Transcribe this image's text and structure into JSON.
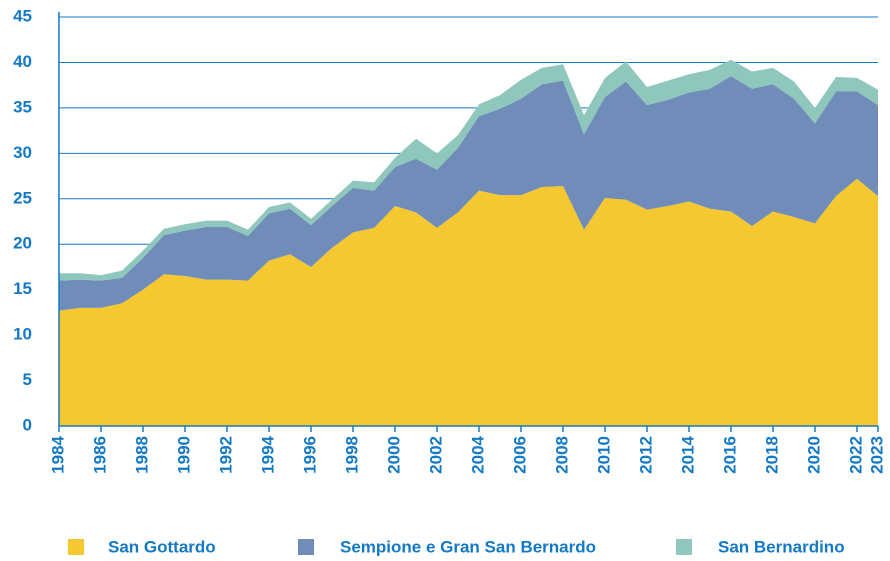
{
  "chart_data": {
    "type": "stacked_area",
    "x": [
      1984,
      1985,
      1986,
      1987,
      1988,
      1989,
      1990,
      1991,
      1992,
      1993,
      1994,
      1995,
      1996,
      1997,
      1998,
      1999,
      2000,
      2001,
      2002,
      2003,
      2004,
      2005,
      2006,
      2007,
      2008,
      2009,
      2010,
      2011,
      2012,
      2013,
      2014,
      2015,
      2016,
      2017,
      2018,
      2019,
      2020,
      2021,
      2022,
      2023
    ],
    "series": [
      {
        "name": "San Gottardo",
        "color": "#f5c730",
        "values": [
          12.7,
          13.0,
          13.0,
          13.5,
          15.0,
          16.7,
          16.5,
          16.1,
          16.1,
          16.0,
          18.2,
          18.9,
          17.5,
          19.6,
          21.3,
          21.8,
          24.2,
          23.5,
          21.8,
          23.5,
          25.9,
          25.4,
          25.4,
          26.3,
          26.4,
          21.6,
          25.1,
          24.9,
          23.8,
          24.2,
          24.7,
          23.9,
          23.6,
          22.0,
          23.6,
          23.0,
          22.3,
          25.3,
          27.2,
          25.3
        ]
      },
      {
        "name": "Sempione e Gran San Bernardo",
        "color": "#6f8db8",
        "values": [
          3.3,
          3.1,
          3.0,
          2.8,
          3.5,
          4.3,
          5.0,
          5.8,
          5.8,
          4.9,
          5.2,
          5.0,
          4.6,
          4.6,
          4.9,
          4.1,
          4.3,
          5.9,
          6.4,
          7.1,
          8.2,
          9.5,
          10.6,
          11.3,
          11.6,
          10.5,
          11.1,
          13.0,
          11.5,
          11.7,
          12.0,
          13.2,
          14.9,
          15.1,
          14.0,
          13.0,
          11.0,
          11.5,
          9.6,
          10.0
        ]
      },
      {
        "name": "San Bernardino",
        "color": "#8fc7bd",
        "values": [
          0.8,
          0.7,
          0.6,
          0.8,
          0.8,
          0.7,
          0.7,
          0.7,
          0.7,
          0.7,
          0.7,
          0.7,
          0.7,
          0.7,
          0.8,
          0.9,
          1.0,
          2.2,
          1.8,
          1.4,
          1.3,
          1.5,
          2.1,
          1.8,
          1.8,
          2.1,
          2.1,
          2.2,
          2.0,
          2.1,
          2.0,
          2.1,
          1.8,
          1.9,
          1.8,
          1.9,
          1.7,
          1.6,
          1.5,
          1.7
        ]
      }
    ],
    "xlim": [
      1984,
      2023
    ],
    "xticks": [
      1984,
      1986,
      1988,
      1990,
      1992,
      1994,
      1996,
      1998,
      2000,
      2002,
      2004,
      2006,
      2008,
      2010,
      2012,
      2014,
      2016,
      2018,
      2020,
      2022,
      2023
    ],
    "ylim": [
      0,
      45
    ],
    "yticks": [
      0,
      5,
      10,
      15,
      20,
      25,
      30,
      35,
      40,
      45
    ],
    "grid": true
  }
}
